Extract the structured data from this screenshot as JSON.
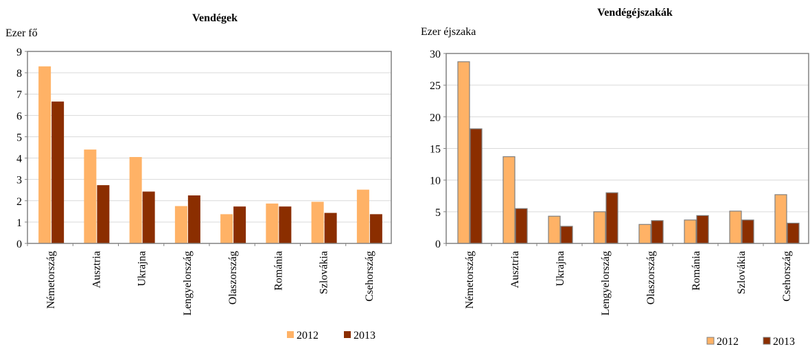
{
  "chart_data": [
    {
      "type": "bar",
      "title": "Vendégek",
      "unit_label": "Ezer fő",
      "categories": [
        "Németország",
        "Ausztria",
        "Ukrajna",
        "Lengyelország",
        "Olaszország",
        "Románia",
        "Szlovákia",
        "Csehország"
      ],
      "series": [
        {
          "name": "2012",
          "values": [
            8.3,
            4.4,
            4.05,
            1.75,
            1.37,
            1.87,
            1.95,
            2.52
          ]
        },
        {
          "name": "2013",
          "values": [
            6.65,
            2.73,
            2.43,
            2.25,
            1.73,
            1.73,
            1.43,
            1.37
          ]
        }
      ],
      "ylim": [
        0,
        9
      ],
      "yticks": [
        0,
        1,
        2,
        3,
        4,
        5,
        6,
        7,
        8,
        9
      ],
      "grid": true,
      "legend_position": "bottom-right",
      "colors": {
        "2012": "#FFB266",
        "2013": "#8B2E00"
      },
      "bar_outline": false
    },
    {
      "type": "bar",
      "title": "Vendégéjszakák",
      "unit_label": "Ezer éjszaka",
      "categories": [
        "Németország",
        "Ausztria",
        "Ukrajna",
        "Lengyelország",
        "Olaszország",
        "Románia",
        "Szlovákia",
        "Csehország"
      ],
      "series": [
        {
          "name": "2012",
          "values": [
            28.7,
            13.7,
            4.3,
            5.0,
            3.0,
            3.7,
            5.1,
            7.7
          ]
        },
        {
          "name": "2013",
          "values": [
            18.1,
            5.5,
            2.7,
            8.0,
            3.6,
            4.4,
            3.7,
            3.2
          ]
        }
      ],
      "ylim": [
        0,
        30
      ],
      "yticks": [
        0,
        5,
        10,
        15,
        20,
        25,
        30
      ],
      "grid": true,
      "legend_position": "bottom-right",
      "colors": {
        "2012": "#FFB266",
        "2013": "#8B2E00"
      },
      "bar_outline": true
    }
  ]
}
